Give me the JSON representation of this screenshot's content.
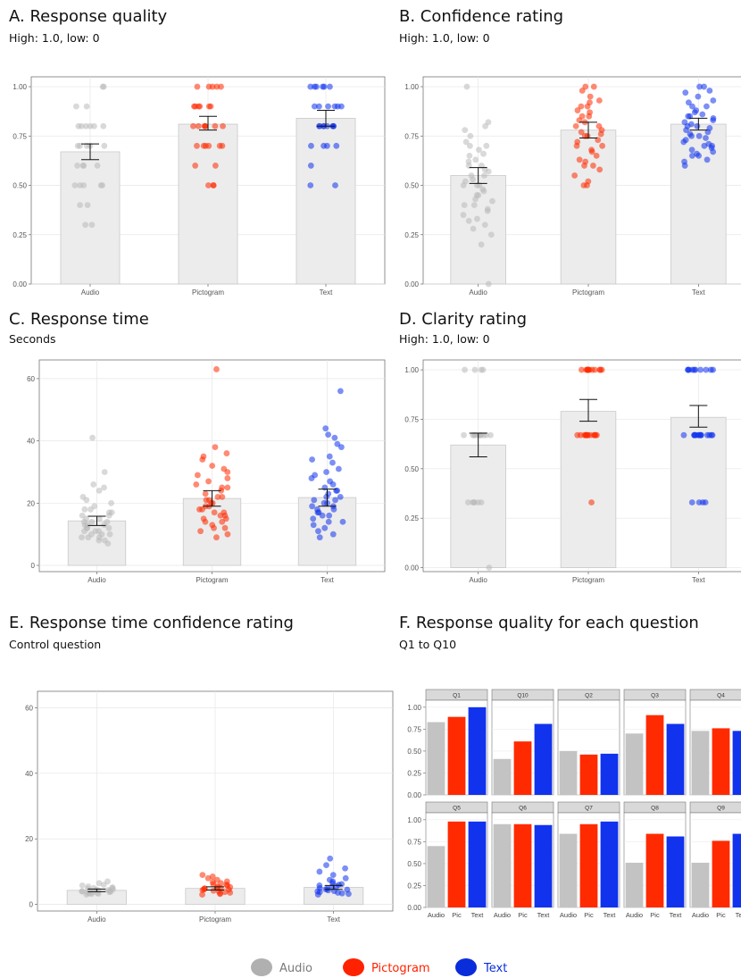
{
  "colors": {
    "audio": "#b9b9b9",
    "pictogram": "#ff2a00",
    "text": "#1133ee"
  },
  "legend": {
    "items": [
      {
        "label": "Audio",
        "color": "#b0b0b0",
        "text_color": "#7a7a7a"
      },
      {
        "label": "Pictogram",
        "color": "#ff2200",
        "text_color": "#ff2200"
      },
      {
        "label": "Text",
        "color": "#0a2ddb",
        "text_color": "#0a2ddb"
      }
    ]
  },
  "chart_data": [
    {
      "id": "A",
      "type": "bar",
      "title": "A. Response quality",
      "subtitle": "High: 1.0, low: 0",
      "categories": [
        "Audio",
        "Pictogram",
        "Text"
      ],
      "values": [
        0.67,
        0.81,
        0.84
      ],
      "error": [
        [
          0.63,
          0.71
        ],
        [
          0.78,
          0.85
        ],
        [
          0.8,
          0.88
        ]
      ],
      "ylim": [
        0,
        1.05
      ],
      "yticks": [
        "0.00",
        "0.25",
        "0.50",
        "0.75",
        "1.00"
      ],
      "points": [
        [
          1.0,
          1.0,
          0.9,
          0.9,
          0.8,
          0.8,
          0.8,
          0.8,
          0.8,
          0.8,
          0.7,
          0.7,
          0.7,
          0.7,
          0.7,
          0.6,
          0.6,
          0.6,
          0.6,
          0.5,
          0.5,
          0.5,
          0.5,
          0.5,
          0.4,
          0.4,
          0.3,
          0.3
        ],
        [
          1.0,
          1.0,
          1.0,
          1.0,
          1.0,
          0.9,
          0.9,
          0.9,
          0.9,
          0.9,
          0.9,
          0.8,
          0.8,
          0.8,
          0.8,
          0.8,
          0.8,
          0.8,
          0.7,
          0.7,
          0.7,
          0.7,
          0.7,
          0.7,
          0.6,
          0.6,
          0.5,
          0.5,
          0.5
        ],
        [
          1.0,
          1.0,
          1.0,
          1.0,
          1.0,
          1.0,
          0.9,
          0.9,
          0.9,
          0.9,
          0.9,
          0.9,
          0.8,
          0.8,
          0.8,
          0.8,
          0.8,
          0.8,
          0.8,
          0.8,
          0.7,
          0.7,
          0.7,
          0.7,
          0.6,
          0.5,
          0.5
        ]
      ]
    },
    {
      "id": "B",
      "type": "bar",
      "title": "B. Confidence rating",
      "subtitle": "High: 1.0, low: 0",
      "categories": [
        "Audio",
        "Pictogram",
        "Text"
      ],
      "values": [
        0.55,
        0.78,
        0.81
      ],
      "error": [
        [
          0.51,
          0.59
        ],
        [
          0.74,
          0.82
        ],
        [
          0.78,
          0.84
        ]
      ],
      "ylim": [
        0,
        1.05
      ],
      "yticks": [
        "0.00",
        "0.25",
        "0.50",
        "0.75",
        "1.00"
      ],
      "points": [
        [
          1.0,
          0.82,
          0.8,
          0.78,
          0.75,
          0.72,
          0.7,
          0.7,
          0.68,
          0.66,
          0.65,
          0.63,
          0.62,
          0.6,
          0.6,
          0.58,
          0.57,
          0.55,
          0.55,
          0.53,
          0.52,
          0.5,
          0.5,
          0.5,
          0.48,
          0.47,
          0.45,
          0.45,
          0.43,
          0.42,
          0.4,
          0.4,
          0.38,
          0.37,
          0.35,
          0.33,
          0.32,
          0.3,
          0.28,
          0.25,
          0.2,
          0.0
        ],
        [
          1.0,
          1.0,
          0.98,
          0.95,
          0.93,
          0.92,
          0.9,
          0.9,
          0.88,
          0.87,
          0.85,
          0.85,
          0.83,
          0.82,
          0.8,
          0.8,
          0.78,
          0.77,
          0.76,
          0.75,
          0.75,
          0.73,
          0.72,
          0.7,
          0.7,
          0.68,
          0.67,
          0.65,
          0.63,
          0.62,
          0.6,
          0.6,
          0.58,
          0.55,
          0.52,
          0.5,
          0.5
        ],
        [
          1.0,
          1.0,
          0.98,
          0.97,
          0.95,
          0.93,
          0.92,
          0.9,
          0.9,
          0.88,
          0.87,
          0.86,
          0.85,
          0.85,
          0.84,
          0.83,
          0.82,
          0.81,
          0.8,
          0.8,
          0.79,
          0.78,
          0.77,
          0.76,
          0.75,
          0.75,
          0.74,
          0.73,
          0.72,
          0.71,
          0.7,
          0.7,
          0.69,
          0.68,
          0.67,
          0.66,
          0.65,
          0.65,
          0.63,
          0.62,
          0.6
        ]
      ]
    },
    {
      "id": "C",
      "type": "bar",
      "title": "C. Response time",
      "subtitle": "Seconds",
      "categories": [
        "Audio",
        "Pictogram",
        "Text"
      ],
      "values": [
        14.3,
        21.5,
        21.8
      ],
      "error": [
        [
          12.8,
          15.8
        ],
        [
          19.0,
          24.0
        ],
        [
          19.0,
          24.5
        ]
      ],
      "ylim": [
        -2,
        66
      ],
      "yticks": [
        "0",
        "20",
        "40",
        "60"
      ],
      "points": [
        [
          41,
          30,
          26,
          25,
          24,
          22,
          21,
          20,
          19,
          18,
          18,
          17,
          17,
          16,
          16,
          15,
          15,
          14,
          14,
          14,
          13,
          13,
          13,
          12,
          12,
          12,
          11,
          11,
          11,
          10,
          10,
          10,
          9,
          9,
          9,
          8,
          8,
          7
        ],
        [
          63,
          38,
          36,
          35,
          34,
          32,
          31,
          30,
          29,
          28,
          27,
          26,
          25,
          25,
          24,
          23,
          22,
          22,
          21,
          21,
          20,
          20,
          19,
          19,
          18,
          18,
          17,
          17,
          16,
          16,
          15,
          15,
          14,
          14,
          13,
          12,
          12,
          11,
          10,
          9
        ],
        [
          56,
          44,
          42,
          41,
          39,
          38,
          35,
          34,
          33,
          31,
          30,
          29,
          28,
          27,
          26,
          25,
          24,
          24,
          23,
          22,
          22,
          21,
          21,
          20,
          20,
          19,
          19,
          18,
          18,
          17,
          17,
          16,
          16,
          15,
          14,
          14,
          13,
          12,
          11,
          10,
          9
        ]
      ]
    },
    {
      "id": "D",
      "type": "bar",
      "title": "D. Clarity rating",
      "subtitle": "High: 1.0, low: 0",
      "categories": [
        "Audio",
        "Pictogram",
        "Text"
      ],
      "values": [
        0.62,
        0.79,
        0.76
      ],
      "error": [
        [
          0.56,
          0.68
        ],
        [
          0.74,
          0.85
        ],
        [
          0.71,
          0.82
        ]
      ],
      "ylim": [
        -0.02,
        1.05
      ],
      "yticks": [
        "0.00",
        "0.25",
        "0.50",
        "0.75",
        "1.00"
      ],
      "points": [
        [
          1.0,
          1.0,
          1.0,
          1.0,
          0.67,
          0.67,
          0.67,
          0.67,
          0.67,
          0.67,
          0.67,
          0.67,
          0.67,
          0.67,
          0.67,
          0.33,
          0.33,
          0.33,
          0.33,
          0.33,
          0.33,
          0.0
        ],
        [
          1.0,
          1.0,
          1.0,
          1.0,
          1.0,
          1.0,
          1.0,
          1.0,
          1.0,
          1.0,
          1.0,
          1.0,
          0.67,
          0.67,
          0.67,
          0.67,
          0.67,
          0.67,
          0.67,
          0.67,
          0.67,
          0.67,
          0.67,
          0.67,
          0.67,
          0.33
        ],
        [
          1.0,
          1.0,
          1.0,
          1.0,
          1.0,
          1.0,
          1.0,
          1.0,
          1.0,
          1.0,
          0.67,
          0.67,
          0.67,
          0.67,
          0.67,
          0.67,
          0.67,
          0.67,
          0.67,
          0.67,
          0.67,
          0.67,
          0.67,
          0.67,
          0.33,
          0.33,
          0.33,
          0.33
        ]
      ]
    },
    {
      "id": "E",
      "type": "bar",
      "title": "E. Response time confidence rating",
      "subtitle": "Control question",
      "categories": [
        "Audio",
        "Pictogram",
        "Text"
      ],
      "values": [
        4.3,
        4.9,
        5.2
      ],
      "error": [
        [
          3.9,
          4.7
        ],
        [
          4.4,
          5.4
        ],
        [
          4.6,
          5.8
        ]
      ],
      "ylim": [
        -2,
        65
      ],
      "yticks": [
        "0",
        "20",
        "40",
        "60"
      ],
      "points": [
        [
          7,
          6.5,
          6,
          5.8,
          5.5,
          5.2,
          5,
          5,
          4.8,
          4.6,
          4.5,
          4.4,
          4.3,
          4.2,
          4.1,
          4,
          4,
          3.9,
          3.8,
          3.7,
          3.6,
          3.5,
          3.4,
          3.3,
          3.2,
          3
        ],
        [
          9,
          8.5,
          8,
          7.5,
          7,
          6.8,
          6.5,
          6.2,
          6,
          5.8,
          5.5,
          5.3,
          5.1,
          5,
          4.9,
          4.8,
          4.6,
          4.5,
          4.4,
          4.2,
          4,
          3.8,
          3.6,
          3.4,
          3.2,
          3
        ],
        [
          14,
          12,
          11,
          10,
          9,
          8,
          7.5,
          7,
          6.5,
          6.2,
          6,
          5.8,
          5.5,
          5.3,
          5,
          4.8,
          4.6,
          4.5,
          4.3,
          4.1,
          4,
          3.8,
          3.6,
          3.4,
          3.2,
          3
        ]
      ]
    },
    {
      "id": "F",
      "type": "bar",
      "title": "F. Response quality for each question",
      "subtitle": "Q1 to Q10",
      "category_labels": [
        "Audio",
        "Pic",
        "Text"
      ],
      "ylim": [
        0,
        1.08
      ],
      "yticks": [
        "0.00",
        "0.25",
        "0.50",
        "0.75",
        "1.00"
      ],
      "facets": [
        {
          "name": "Q1",
          "values": [
            0.83,
            0.89,
            1.0
          ]
        },
        {
          "name": "Q10",
          "values": [
            0.41,
            0.61,
            0.81
          ]
        },
        {
          "name": "Q2",
          "values": [
            0.5,
            0.46,
            0.47
          ]
        },
        {
          "name": "Q3",
          "values": [
            0.7,
            0.91,
            0.81
          ]
        },
        {
          "name": "Q4",
          "values": [
            0.73,
            0.76,
            0.73
          ]
        },
        {
          "name": "Q5",
          "values": [
            0.7,
            0.98,
            0.98
          ]
        },
        {
          "name": "Q6",
          "values": [
            0.95,
            0.95,
            0.94
          ]
        },
        {
          "name": "Q7",
          "values": [
            0.84,
            0.95,
            0.98
          ]
        },
        {
          "name": "Q8",
          "values": [
            0.51,
            0.84,
            0.81
          ]
        },
        {
          "name": "Q9",
          "values": [
            0.51,
            0.76,
            0.84
          ]
        }
      ]
    }
  ]
}
